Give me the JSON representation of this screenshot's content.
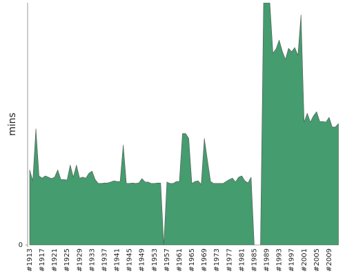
{
  "chart_data": {
    "type": "area",
    "y_label": "mins",
    "color": "#459c6e",
    "categories": [
      "#1913",
      null,
      null,
      null,
      "#1917",
      null,
      null,
      null,
      "#1921",
      null,
      null,
      null,
      "#1925",
      null,
      null,
      null,
      "#1929",
      null,
      null,
      null,
      "#1933",
      null,
      null,
      null,
      "#1937",
      null,
      null,
      null,
      "#1941",
      null,
      null,
      null,
      "#1945",
      null,
      null,
      null,
      "#1949",
      null,
      null,
      null,
      "#1953",
      null,
      null,
      null,
      "#1957",
      null,
      null,
      null,
      "#1961",
      null,
      null,
      null,
      "#1965",
      null,
      null,
      null,
      "#1969",
      null,
      null,
      null,
      "#1973",
      null,
      null,
      null,
      "#1977",
      null,
      null,
      null,
      "#1981",
      null,
      null,
      null,
      "#1985",
      null,
      null,
      null,
      "#1989",
      null,
      null,
      null,
      "#1993",
      null,
      null,
      null,
      "#1997",
      null,
      null,
      null,
      "#2001",
      null,
      null,
      null,
      "#2005",
      null,
      null,
      null,
      "#2009",
      null,
      null,
      null
    ],
    "values": [
      31,
      26.5,
      48,
      28.5,
      27.6,
      28.5,
      28,
      27.4,
      28,
      31,
      27,
      27,
      26.8,
      33,
      28,
      33,
      27.6,
      28,
      27.6,
      29.6,
      30.5,
      27,
      25.4,
      25.4,
      25.6,
      25.6,
      26,
      26.5,
      26.2,
      26.2,
      41.3,
      25.4,
      25.4,
      25.6,
      25.4,
      25.6,
      27.4,
      26,
      26,
      25.4,
      25.4,
      25.6,
      25.6,
      0,
      26,
      25.4,
      25.4,
      26.2,
      26.2,
      46,
      46,
      44,
      25.4,
      26.2,
      26.5,
      25,
      44,
      35,
      26.2,
      25.4,
      25.4,
      25.4,
      25.4,
      26.2,
      27,
      27.6,
      26,
      28,
      28.5,
      26.5,
      25.6,
      28,
      0,
      0,
      0,
      100,
      100,
      100,
      79.2,
      81,
      84.6,
      80,
      76.6,
      81.2,
      79.8,
      81.5,
      78.3,
      95,
      50.7,
      54.4,
      50.7,
      53.3,
      55,
      51,
      51,
      50.7,
      52.7,
      48.7,
      48.7,
      50.1
    ],
    "ylim": [
      0,
      100
    ],
    "yticks": [
      0
    ]
  }
}
